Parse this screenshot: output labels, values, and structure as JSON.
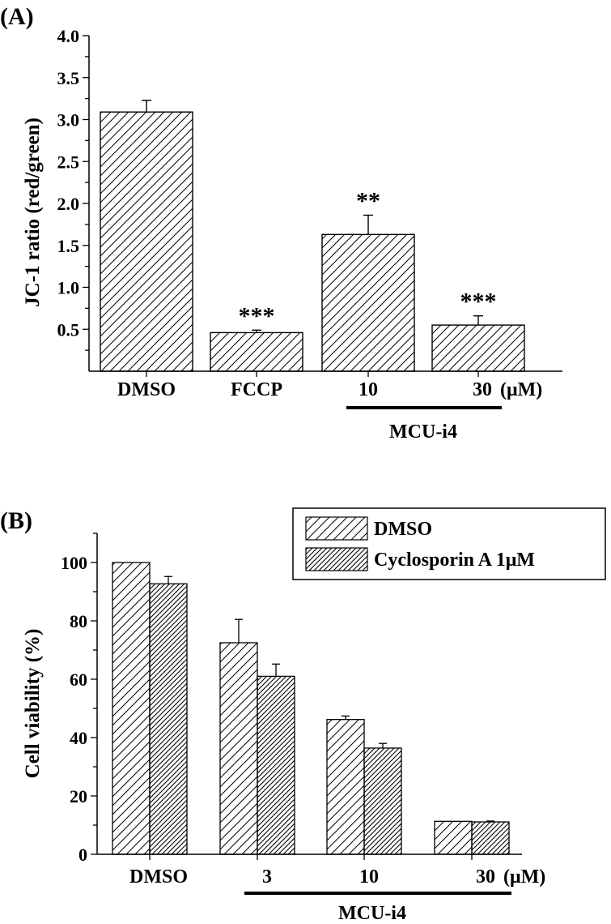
{
  "chart_data": [
    {
      "panel": "(A)",
      "type": "bar",
      "ylabel": "JC-1 ratio (red/green)",
      "xlabel": "",
      "ylim": [
        0.0,
        4.0
      ],
      "yticks": [
        "0.5",
        "1.0",
        "1.5",
        "2.0",
        "2.5",
        "3.0",
        "3.5",
        "4.0"
      ],
      "categories": [
        "DMSO",
        "FCCP",
        "10",
        "30"
      ],
      "unit_label": "(μM)",
      "group_label": "MCU-i4",
      "values": [
        3.09,
        0.46,
        1.63,
        0.55
      ],
      "errors": [
        0.14,
        0.03,
        0.23,
        0.11
      ],
      "significance": [
        "",
        "***",
        "**",
        "***"
      ]
    },
    {
      "panel": "(B)",
      "type": "bar",
      "ylabel": "Cell viability (%)",
      "xlabel": "",
      "ylim": [
        0,
        110
      ],
      "yticks": [
        "0",
        "20",
        "40",
        "60",
        "80",
        "100"
      ],
      "categories": [
        "DMSO",
        "3",
        "10",
        "30"
      ],
      "unit_label": "(μM)",
      "group_label": "MCU-i4",
      "legend": [
        "DMSO",
        "Cyclosporin A 1μM"
      ],
      "series": [
        {
          "name": "DMSO",
          "values": [
            100,
            72.5,
            46.2,
            11.3
          ],
          "errors": [
            0,
            8.0,
            1.2,
            0
          ]
        },
        {
          "name": "Cyclosporin A 1μM",
          "values": [
            92.7,
            61.0,
            36.4,
            11.1
          ],
          "errors": [
            2.5,
            4.2,
            1.6,
            0.3
          ]
        }
      ]
    }
  ]
}
